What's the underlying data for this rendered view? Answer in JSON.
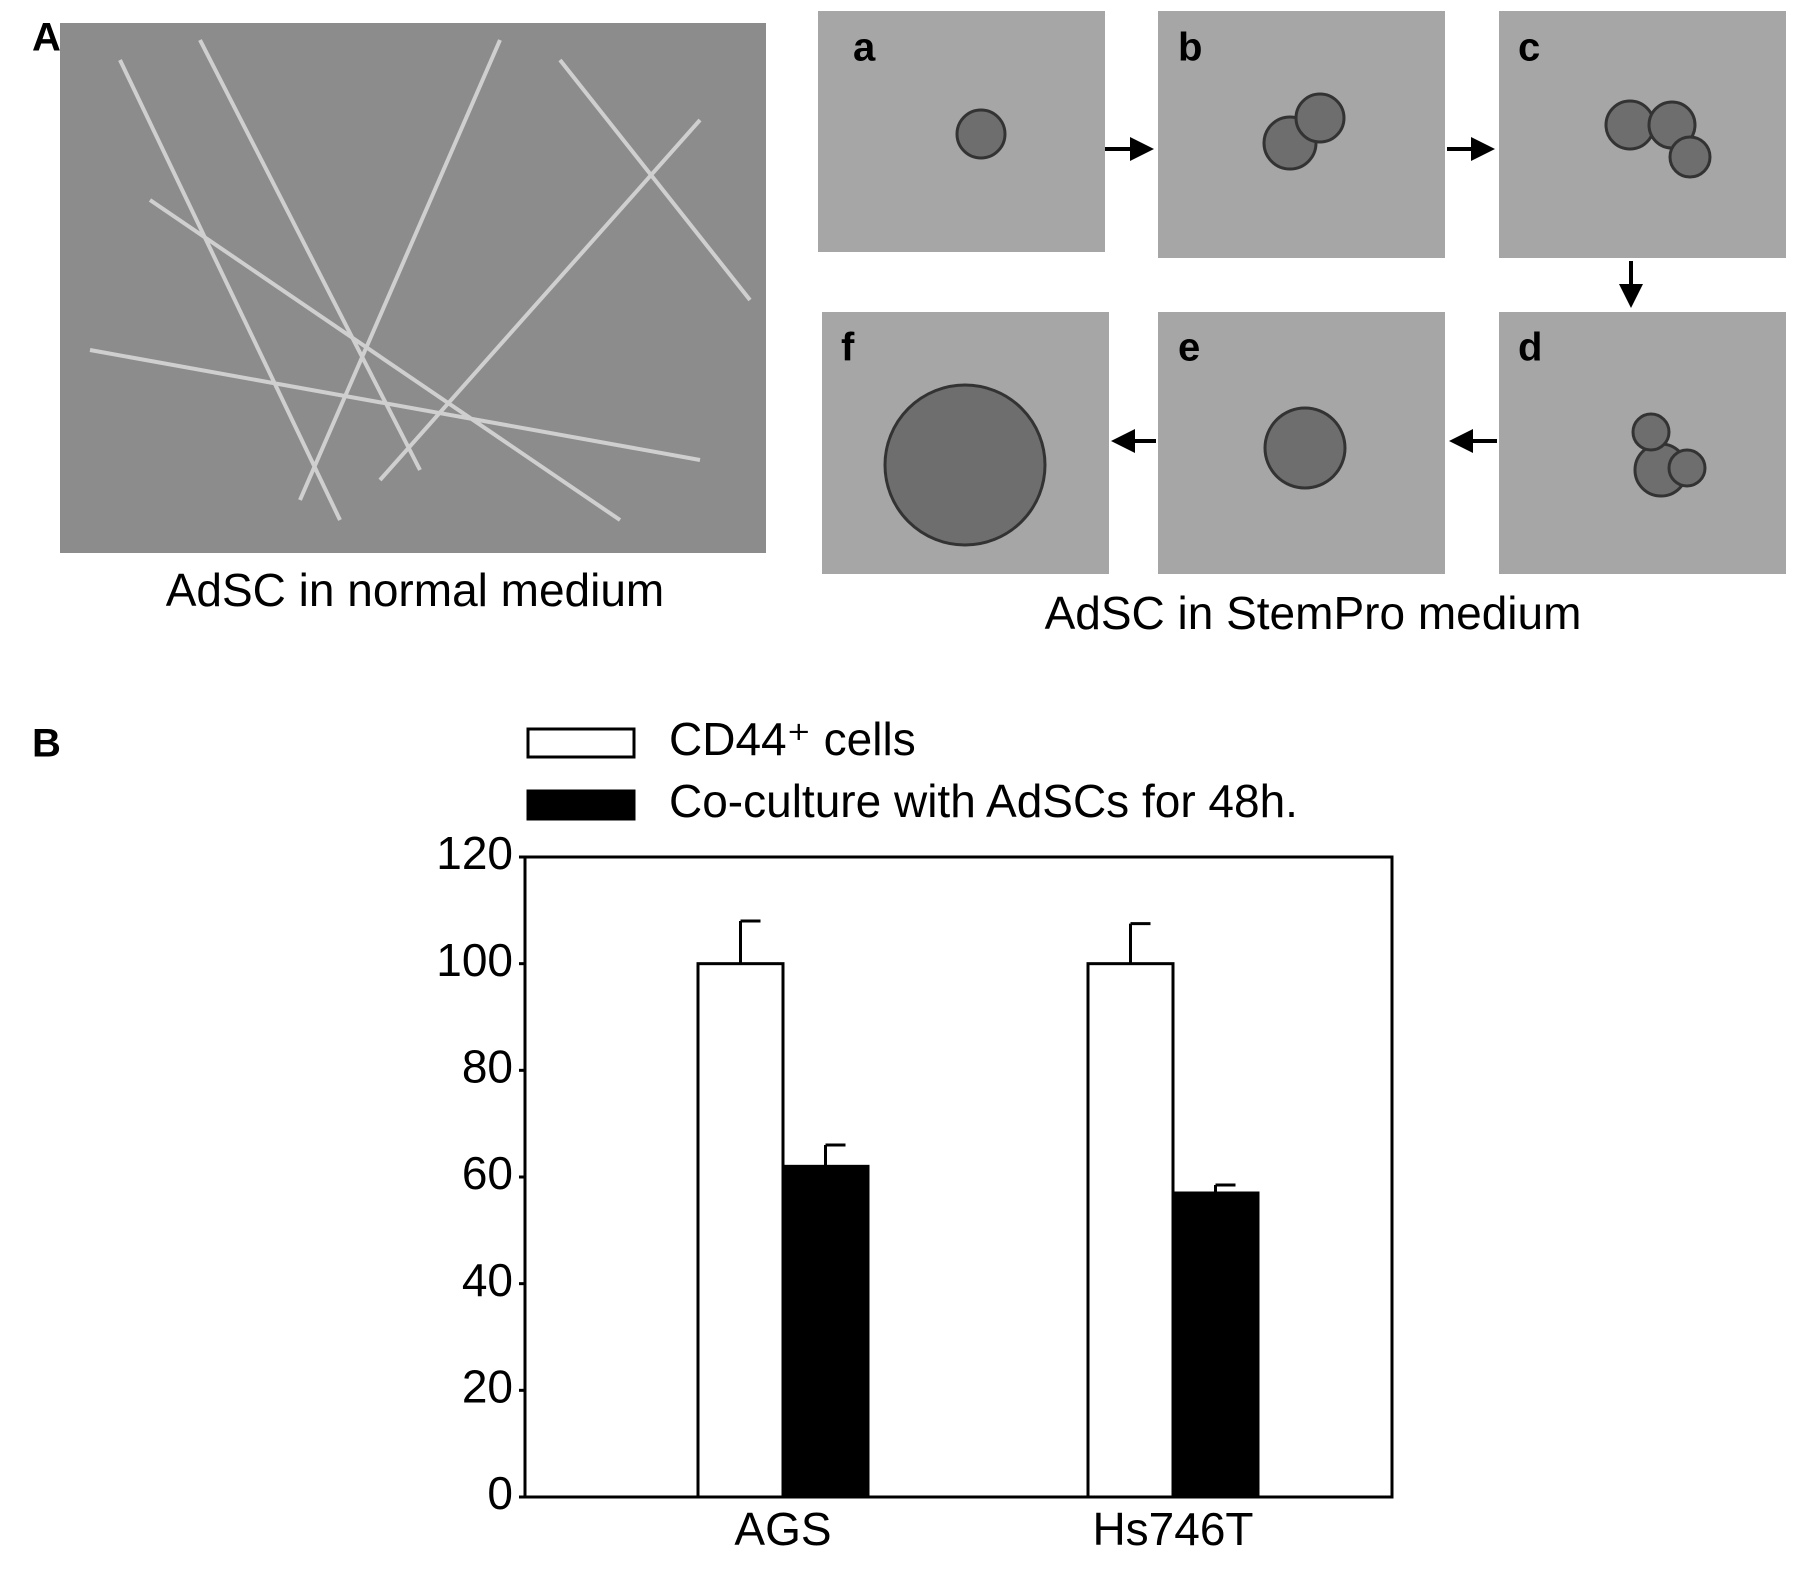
{
  "panel_a": {
    "label": "A",
    "left_caption": "AdSC in normal medium",
    "right_caption": "AdSC in StemPro medium",
    "steps": [
      "a",
      "b",
      "c",
      "d",
      "e",
      "f"
    ]
  },
  "panel_b": {
    "label": "B"
  },
  "chart_data": {
    "type": "bar",
    "categories": [
      "AGS",
      "Hs746T"
    ],
    "series": [
      {
        "name": "CD44⁺ cells",
        "color": "#ffffff",
        "values": [
          100,
          100
        ],
        "errors": [
          8,
          7.5
        ]
      },
      {
        "name": "Co-culture with AdSCs for 48h.",
        "color": "#000000",
        "values": [
          62,
          57
        ],
        "errors": [
          4,
          1.5
        ]
      }
    ],
    "ylim": [
      0,
      120
    ],
    "yticks": [
      0,
      20,
      40,
      60,
      80,
      100,
      120
    ],
    "grid": false,
    "legend": "top"
  }
}
